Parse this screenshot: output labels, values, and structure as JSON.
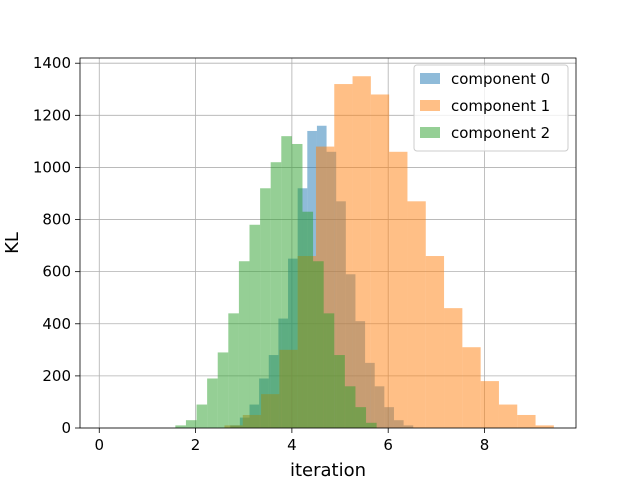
{
  "chart_data": {
    "type": "bar",
    "subtype": "overlaid-histogram",
    "xlabel": "iteration",
    "ylabel": "KL",
    "xlim": [
      -0.4,
      9.9
    ],
    "ylim": [
      0,
      1420
    ],
    "xticks": [
      0,
      2,
      4,
      6,
      8
    ],
    "yticks": [
      0,
      200,
      400,
      600,
      800,
      1000,
      1200,
      1400
    ],
    "grid": true,
    "legend_position": "top-right",
    "bar_alpha": 0.5,
    "series": [
      {
        "name": "component 0",
        "color": "#1f77b4",
        "bins": [
          [
            2.72,
            2.92,
            10
          ],
          [
            2.92,
            3.12,
            40
          ],
          [
            3.12,
            3.32,
            90
          ],
          [
            3.32,
            3.52,
            190
          ],
          [
            3.52,
            3.72,
            280
          ],
          [
            3.72,
            3.92,
            420
          ],
          [
            3.92,
            4.12,
            650
          ],
          [
            4.12,
            4.32,
            920
          ],
          [
            4.32,
            4.52,
            1140
          ],
          [
            4.52,
            4.72,
            1160
          ],
          [
            4.72,
            4.92,
            1060
          ],
          [
            4.92,
            5.12,
            870
          ],
          [
            5.12,
            5.32,
            590
          ],
          [
            5.32,
            5.52,
            410
          ],
          [
            5.52,
            5.72,
            250
          ],
          [
            5.72,
            5.92,
            160
          ],
          [
            5.92,
            6.12,
            80
          ],
          [
            6.12,
            6.32,
            30
          ],
          [
            6.32,
            6.52,
            10
          ]
        ]
      },
      {
        "name": "component 1",
        "color": "#ff7f0e",
        "bins": [
          [
            2.6,
            2.98,
            10
          ],
          [
            2.98,
            3.36,
            50
          ],
          [
            3.36,
            3.74,
            130
          ],
          [
            3.74,
            4.12,
            300
          ],
          [
            4.12,
            4.5,
            660
          ],
          [
            4.5,
            4.88,
            1080
          ],
          [
            4.88,
            5.26,
            1320
          ],
          [
            5.26,
            5.64,
            1350
          ],
          [
            5.64,
            6.02,
            1280
          ],
          [
            6.02,
            6.4,
            1060
          ],
          [
            6.4,
            6.78,
            870
          ],
          [
            6.78,
            7.16,
            660
          ],
          [
            7.16,
            7.54,
            460
          ],
          [
            7.54,
            7.92,
            310
          ],
          [
            7.92,
            8.3,
            180
          ],
          [
            8.3,
            8.68,
            90
          ],
          [
            8.68,
            9.06,
            50
          ],
          [
            9.06,
            9.44,
            10
          ]
        ]
      },
      {
        "name": "component 2",
        "color": "#2ca02c",
        "bins": [
          [
            1.58,
            1.8,
            10
          ],
          [
            1.8,
            2.02,
            30
          ],
          [
            2.02,
            2.24,
            90
          ],
          [
            2.24,
            2.46,
            190
          ],
          [
            2.46,
            2.68,
            290
          ],
          [
            2.68,
            2.9,
            440
          ],
          [
            2.9,
            3.12,
            640
          ],
          [
            3.12,
            3.34,
            780
          ],
          [
            3.34,
            3.56,
            920
          ],
          [
            3.56,
            3.78,
            1020
          ],
          [
            3.78,
            4.0,
            1120
          ],
          [
            4.0,
            4.22,
            1090
          ],
          [
            4.22,
            4.44,
            830
          ],
          [
            4.44,
            4.66,
            640
          ],
          [
            4.66,
            4.88,
            440
          ],
          [
            4.88,
            5.1,
            280
          ],
          [
            5.1,
            5.32,
            160
          ],
          [
            5.32,
            5.54,
            80
          ],
          [
            5.54,
            5.76,
            20
          ]
        ]
      }
    ]
  }
}
